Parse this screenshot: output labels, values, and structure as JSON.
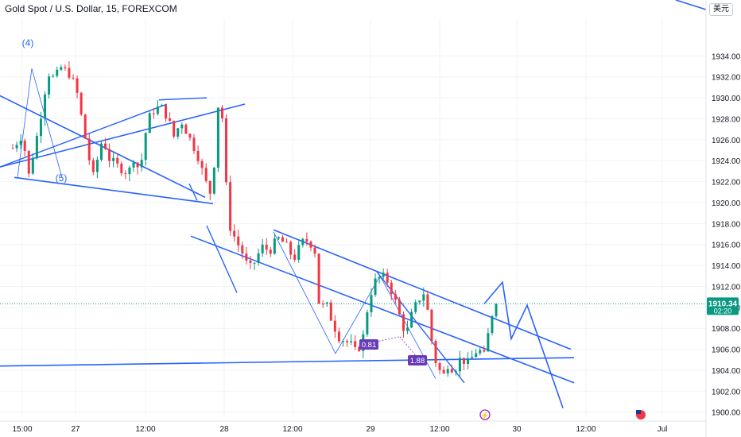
{
  "header": {
    "title": "Gold Spot / U.S. Dollar, 15, FOREXCOM",
    "currency": "美元"
  },
  "price_tag": {
    "price": "1910.34",
    "countdown": "02:20",
    "color": "#089981"
  },
  "colors": {
    "up": "#089981",
    "down": "#f23645",
    "drawing": "#2962ff",
    "grid": "#f0f3fa",
    "axis_text": "#131722",
    "badge": "#673ab7"
  },
  "chart_data": {
    "type": "candlestick",
    "title": "Gold Spot / U.S. Dollar, 15, FOREXCOM",
    "ylim": [
      1899.6,
      1936.0
    ],
    "y_ticks": [
      1900,
      1902,
      1904,
      1906,
      1908,
      1910,
      1912,
      1914,
      1916,
      1918,
      1920,
      1922,
      1924,
      1926,
      1928,
      1930,
      1932,
      1934
    ],
    "y_tick_labels": [
      "1900.00",
      "1902.00",
      "1904.00",
      "1906.00",
      "1908.00",
      "1910.00",
      "1912.00",
      "1914.00",
      "1916.00",
      "1918.00",
      "1920.00",
      "1922.00",
      "1924.00",
      "1926.00",
      "1928.00",
      "1930.00",
      "1932.00",
      "1934.00"
    ],
    "x_tick_labels": [
      "15:00",
      "27",
      "12:00",
      "28",
      "12:00",
      "29",
      "12:00",
      "30",
      "12:00",
      "Jul"
    ],
    "grid": true,
    "close_path": [
      {
        "t": 0,
        "p": 1925.2
      },
      {
        "t": 0.6,
        "p": 1926.5
      },
      {
        "t": 1.0,
        "p": 1922.6
      },
      {
        "t": 1.6,
        "p": 1927.0
      },
      {
        "t": 2.2,
        "p": 1932.4
      },
      {
        "t": 2.6,
        "p": 1931.8
      },
      {
        "t": 3.0,
        "p": 1932.9
      },
      {
        "t": 3.6,
        "p": 1932.2
      },
      {
        "t": 4.0,
        "p": 1930.5
      },
      {
        "t": 4.7,
        "p": 1924.6
      },
      {
        "t": 5.0,
        "p": 1922.4
      },
      {
        "t": 5.6,
        "p": 1926.2
      },
      {
        "t": 6.0,
        "p": 1924.2
      },
      {
        "t": 6.6,
        "p": 1923.4
      },
      {
        "t": 7.2,
        "p": 1922.8
      },
      {
        "t": 7.6,
        "p": 1924.6
      },
      {
        "t": 7.9,
        "p": 1922.6
      },
      {
        "t": 8.2,
        "p": 1926.2
      },
      {
        "t": 8.6,
        "p": 1928.6
      },
      {
        "t": 9.2,
        "p": 1929.2
      },
      {
        "t": 9.7,
        "p": 1928.0
      },
      {
        "t": 10.0,
        "p": 1926.2
      },
      {
        "t": 10.5,
        "p": 1927.8
      },
      {
        "t": 11.0,
        "p": 1926.2
      },
      {
        "t": 11.5,
        "p": 1924.6
      },
      {
        "t": 12.0,
        "p": 1922.0
      },
      {
        "t": 12.4,
        "p": 1920.6
      },
      {
        "t": 12.8,
        "p": 1929.4
      },
      {
        "t": 13.1,
        "p": 1927.8
      },
      {
        "t": 13.3,
        "p": 1921.4
      },
      {
        "t": 13.5,
        "p": 1917.8
      },
      {
        "t": 13.9,
        "p": 1916.4
      },
      {
        "t": 14.3,
        "p": 1915.2
      },
      {
        "t": 14.7,
        "p": 1913.6
      },
      {
        "t": 15.1,
        "p": 1914.4
      },
      {
        "t": 15.5,
        "p": 1915.8
      },
      {
        "t": 16.0,
        "p": 1915.4
      },
      {
        "t": 16.5,
        "p": 1916.6
      },
      {
        "t": 17.0,
        "p": 1916.0
      },
      {
        "t": 17.5,
        "p": 1914.6
      },
      {
        "t": 18.0,
        "p": 1916.2
      },
      {
        "t": 18.4,
        "p": 1916.4
      },
      {
        "t": 18.8,
        "p": 1915.6
      },
      {
        "t": 19.1,
        "p": 1909.8
      },
      {
        "t": 19.5,
        "p": 1910.4
      },
      {
        "t": 19.9,
        "p": 1908.6
      },
      {
        "t": 20.3,
        "p": 1907.2
      },
      {
        "t": 20.7,
        "p": 1906.8
      },
      {
        "t": 21.1,
        "p": 1906.4
      },
      {
        "t": 21.4,
        "p": 1905.6
      },
      {
        "t": 21.8,
        "p": 1907.0
      },
      {
        "t": 22.2,
        "p": 1911.0
      },
      {
        "t": 22.6,
        "p": 1912.6
      },
      {
        "t": 23.0,
        "p": 1913.0
      },
      {
        "t": 23.4,
        "p": 1912.4
      },
      {
        "t": 23.9,
        "p": 1910.2
      },
      {
        "t": 24.2,
        "p": 1908.6
      },
      {
        "t": 24.5,
        "p": 1907.4
      },
      {
        "t": 24.9,
        "p": 1909.6
      },
      {
        "t": 25.3,
        "p": 1910.8
      },
      {
        "t": 25.6,
        "p": 1911.4
      },
      {
        "t": 25.9,
        "p": 1909.2
      },
      {
        "t": 26.2,
        "p": 1905.4
      },
      {
        "t": 26.5,
        "p": 1904.2
      },
      {
        "t": 26.8,
        "p": 1903.4
      },
      {
        "t": 27.1,
        "p": 1904.6
      },
      {
        "t": 27.5,
        "p": 1904.0
      },
      {
        "t": 27.9,
        "p": 1905.2
      },
      {
        "t": 28.3,
        "p": 1904.6
      },
      {
        "t": 28.7,
        "p": 1905.4
      },
      {
        "t": 29.0,
        "p": 1906.2
      },
      {
        "t": 29.3,
        "p": 1905.0
      },
      {
        "t": 29.6,
        "p": 1907.4
      },
      {
        "t": 29.9,
        "p": 1909.8
      },
      {
        "t": 30.1,
        "p": 1910.34
      }
    ],
    "drawings": {
      "channel_lines": [
        {
          "name": "upper-channel-1",
          "p1": [
            1923.4,
            1931.4
          ],
          "p2": [
            1929.4,
            1926.6
          ]
        },
        {
          "name": "lower-channel-1",
          "p1": [
            1922.4,
            1912.2
          ],
          "p2": [
            1919.9,
            1907.2
          ]
        },
        {
          "name": "wedge-rising",
          "p1": [
            1930.2,
            1919.4
          ],
          "p2": [
            1920.5,
            1913.8
          ]
        },
        {
          "name": "upper-channel-2",
          "p1": [
            1917.4,
            1919.2
          ],
          "p2": [
            1906.0,
            1912.4
          ]
        },
        {
          "name": "lower-channel-2",
          "p1": [
            1916.8,
            1913.0
          ],
          "p2": [
            1902.8,
            1906.8
          ]
        },
        {
          "name": "long-support",
          "p1": [
            1904.4,
            1910.6
          ],
          "p2": [
            1905.2,
            1909.6
          ]
        }
      ],
      "projection": [
        1912.4,
        1907.0,
        1910.2,
        1900.4
      ],
      "wave_labels": [
        "(4)",
        "(5)"
      ],
      "fib_ratios": [
        "0.81",
        "1.88"
      ]
    }
  }
}
